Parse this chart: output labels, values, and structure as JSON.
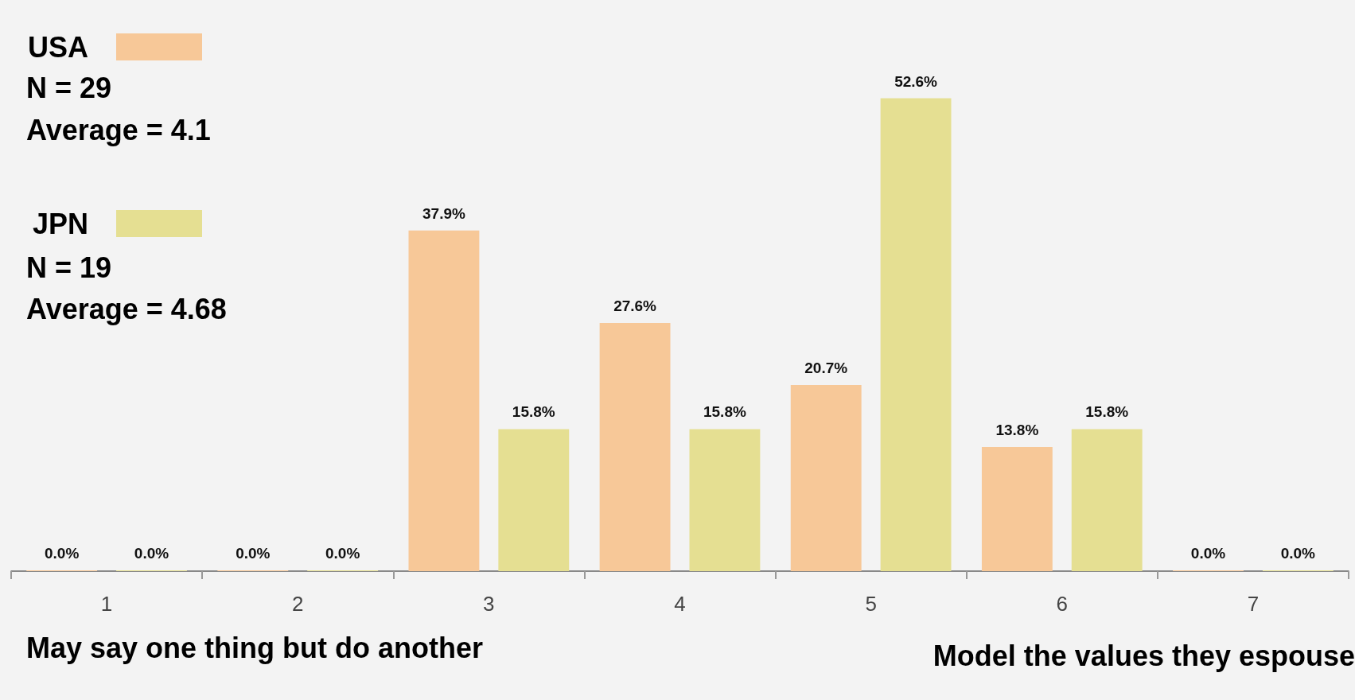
{
  "chart_data": {
    "type": "bar",
    "categories": [
      "1",
      "2",
      "3",
      "4",
      "5",
      "6",
      "7"
    ],
    "series": [
      {
        "name": "USA",
        "color": "#f7c898",
        "values": [
          0,
          0,
          37.9,
          27.6,
          20.7,
          13.8,
          0
        ],
        "value_labels": [
          "0.0%",
          "0.0%",
          "37.9%",
          "27.6%",
          "20.7%",
          "13.8%",
          "0.0%"
        ]
      },
      {
        "name": "JPN",
        "color": "#e5df92",
        "values": [
          0,
          0,
          15.8,
          15.8,
          52.6,
          15.8,
          0
        ],
        "value_labels": [
          "0.0%",
          "0.0%",
          "15.8%",
          "15.8%",
          "52.6%",
          "15.8%",
          "0.0%"
        ]
      }
    ],
    "annotations": [
      "N = 29",
      "Average = 4.1",
      "N = 19",
      "Average = 4.68",
      "May say one thing but do another",
      "Model the values they espouse"
    ],
    "legend": "top left",
    "grid": false
  }
}
